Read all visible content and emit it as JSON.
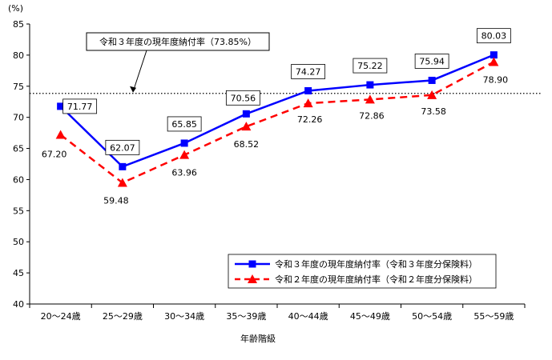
{
  "chart_data": {
    "type": "line",
    "y_unit_label": "(%)",
    "xlabel": "年齢階級",
    "ylim": [
      40,
      85
    ],
    "y_ticks": [
      40,
      45,
      50,
      55,
      60,
      65,
      70,
      75,
      80,
      85
    ],
    "categories": [
      "20～24歳",
      "25～29歳",
      "30～34歳",
      "35～39歳",
      "40～44歳",
      "45～49歳",
      "50～54歳",
      "55～59歳"
    ],
    "series": [
      {
        "name": "令和３年度の現年度納付率（令和３年度分保険料）",
        "color": "#0000ff",
        "line_style": "solid",
        "marker": "square",
        "values": [
          71.77,
          62.07,
          65.85,
          70.56,
          74.27,
          75.22,
          75.94,
          80.03
        ],
        "labels": [
          "71.77",
          "62.07",
          "65.85",
          "70.56",
          "74.27",
          "75.22",
          "75.94",
          "80.03"
        ]
      },
      {
        "name": "令和２年度の現年度納付率（令和２年度分保険料）",
        "color": "#ff0000",
        "line_style": "dashed",
        "marker": "triangle",
        "values": [
          67.2,
          59.48,
          63.96,
          68.52,
          72.26,
          72.86,
          73.58,
          78.9
        ],
        "labels": [
          "67.20",
          "59.48",
          "63.96",
          "68.52",
          "72.26",
          "72.86",
          "73.58",
          "78.90"
        ]
      }
    ],
    "reference_line": {
      "value": 73.85,
      "style": "dotted",
      "label": "令和３年度の現年度納付率（73.85%）"
    },
    "legend_position": "bottom-right",
    "grid": false
  }
}
